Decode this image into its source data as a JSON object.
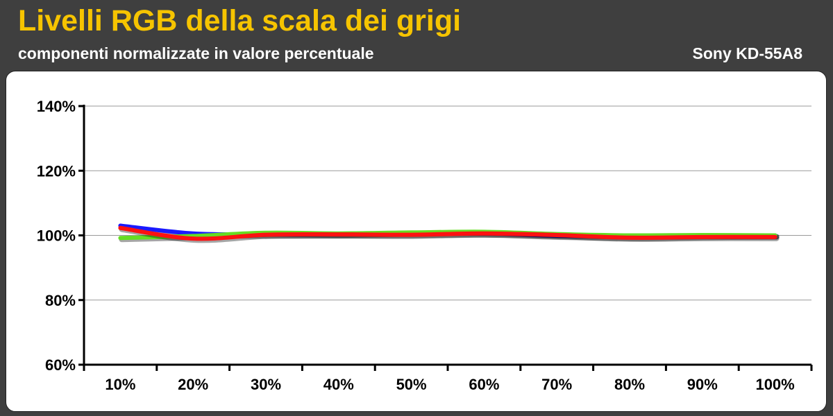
{
  "header": {
    "title": "Livelli RGB della scala dei grigi",
    "subtitle": "componenti normalizzate in valore percentuale",
    "device": "Sony KD-55A8"
  },
  "colors": {
    "background": "#3f3f3f",
    "title": "#f6c400",
    "blue_series": "#1a1aff",
    "green_series": "#66dd22",
    "red_series": "#ff1111",
    "gridline": "#999999"
  },
  "chart_data": {
    "type": "line",
    "title": "Livelli RGB della scala dei grigi",
    "subtitle": "componenti normalizzate in valore percentuale",
    "xlabel": "",
    "ylabel": "",
    "categories": [
      "10%",
      "20%",
      "30%",
      "40%",
      "50%",
      "60%",
      "70%",
      "80%",
      "90%",
      "100%"
    ],
    "ylim": [
      60,
      140
    ],
    "yticks": [
      60,
      80,
      100,
      120,
      140
    ],
    "ytick_labels": [
      "60%",
      "80%",
      "100%",
      "120%",
      "140%"
    ],
    "grid": true,
    "legend": "none",
    "series": [
      {
        "color": "#1a1aff",
        "values": [
          103.0,
          100.6,
          100.3,
          100.3,
          100.4,
          100.6,
          99.9,
          99.5,
          99.8,
          100.0
        ]
      },
      {
        "color": "#66dd22",
        "values": [
          99.2,
          99.8,
          100.8,
          100.6,
          100.9,
          101.1,
          100.4,
          100.0,
          100.1,
          100.0
        ]
      },
      {
        "color": "#ff1111",
        "values": [
          102.3,
          99.0,
          100.2,
          100.3,
          100.2,
          100.6,
          100.1,
          99.3,
          99.5,
          99.5
        ]
      }
    ]
  }
}
